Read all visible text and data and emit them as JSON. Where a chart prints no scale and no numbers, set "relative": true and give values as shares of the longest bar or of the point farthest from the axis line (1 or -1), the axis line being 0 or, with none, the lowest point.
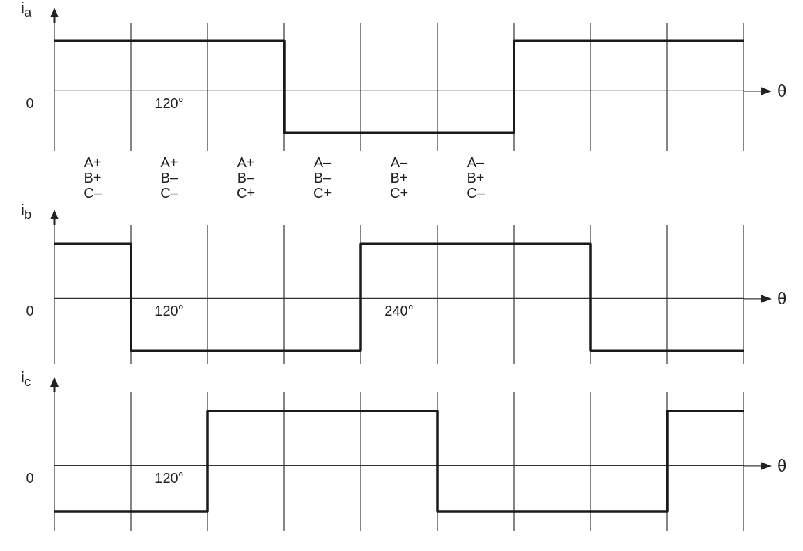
{
  "chart_data": [
    {
      "type": "step",
      "relative": true,
      "ylabel": "i$_{a}$",
      "xlabel": "θ",
      "categories": [
        null,
        null,
        null,
        null,
        null,
        null,
        null,
        null,
        null,
        null
      ],
      "values": [
        1,
        1,
        1,
        -0.83,
        -0.83,
        -0.83,
        1,
        1,
        1,
        1
      ],
      "color": "#1a1a1a",
      "grid": "x",
      "legend": false,
      "annotations": [
        "0",
        "120°",
        "A+\nB+\nC–",
        "A+\nB–\nC–",
        "A+\nB–\nC+",
        "A–\nB–\nC+",
        "A–\nB+\nC+",
        "A–\nB+\nC–"
      ]
    },
    {
      "type": "step",
      "relative": true,
      "ylabel": "i$_{b}$",
      "xlabel": "θ",
      "categories": [
        null,
        null,
        null,
        null,
        null,
        null,
        null,
        null,
        null,
        null
      ],
      "values": [
        1,
        -0.96,
        -0.96,
        -0.96,
        1,
        1,
        1,
        -0.96,
        -0.96,
        -0.96
      ],
      "color": "#1a1a1a",
      "grid": "x",
      "legend": false,
      "annotations": [
        "0",
        "120°",
        "240°"
      ]
    },
    {
      "type": "step",
      "relative": true,
      "ylabel": "i$_{c}$",
      "xlabel": "θ",
      "categories": [
        null,
        null,
        null,
        null,
        null,
        null,
        null,
        null,
        null,
        null
      ],
      "values": [
        -0.84,
        -0.84,
        1,
        1,
        1,
        -0.84,
        -0.84,
        -0.84,
        1,
        1
      ],
      "color": "#1a1a1a",
      "grid": "x",
      "legend": false,
      "annotations": [
        "0",
        "120°"
      ]
    }
  ]
}
